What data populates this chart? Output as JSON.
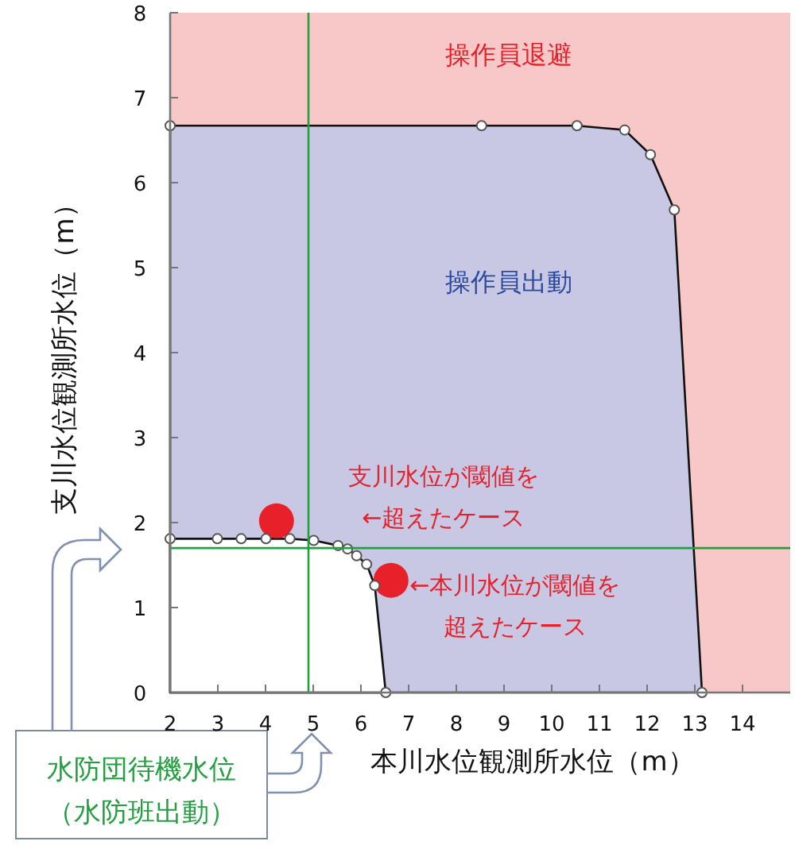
{
  "chart_data": {
    "type": "area",
    "xlabel": "本川水位観測所水位（m）",
    "ylabel": "支川水位観測所水位（m）",
    "xlim": [
      2,
      15
    ],
    "ylim": [
      0,
      8
    ],
    "xticks": [
      2,
      3,
      4,
      5,
      6,
      7,
      8,
      9,
      10,
      11,
      12,
      13,
      14
    ],
    "yticks": [
      0,
      1,
      2,
      3,
      4,
      5,
      6,
      7,
      8
    ],
    "grid": false,
    "series": [
      {
        "name": "操作員出動",
        "color": "#c8c8e4",
        "marker": "circle",
        "x": [
          2,
          8.53,
          10.53,
          11.53,
          12.07,
          12.57,
          13.15
        ],
        "values": [
          6.67,
          6.67,
          6.67,
          6.62,
          6.33,
          5.68,
          0
        ]
      },
      {
        "color": "#ffffff",
        "marker": "circle",
        "x": [
          2,
          2.99,
          3.49,
          4.01,
          4.51,
          5.01,
          5.52,
          5.72,
          5.91,
          6.12,
          6.29,
          6.52
        ],
        "values": [
          1.81,
          1.81,
          1.81,
          1.81,
          1.81,
          1.79,
          1.73,
          1.69,
          1.61,
          1.51,
          1.26,
          0
        ]
      },
      {
        "type": "scatter",
        "color": "#e8202a",
        "marker": "circle",
        "x": [
          4.23,
          6.63
        ],
        "values": [
          2.02,
          1.32
        ]
      }
    ],
    "bands": [
      {
        "axis": "x",
        "from": 2,
        "to": 15,
        "label": "操作員退避",
        "color": "#f8c8c8"
      }
    ],
    "ref_lines": [
      {
        "axis": "x",
        "value": 4.9,
        "color": "#22a040",
        "label": "水防団待機水位（水防班出動）"
      },
      {
        "axis": "y",
        "value": 1.7,
        "color": "#22a040"
      }
    ],
    "annotations": [
      {
        "text": "支川水位が閾値を←超えたケース",
        "x": 4.23,
        "y": 2.02
      },
      {
        "text": "←本川水位が閾値を超えたケース",
        "x": 6.63,
        "y": 1.32
      }
    ]
  }
}
